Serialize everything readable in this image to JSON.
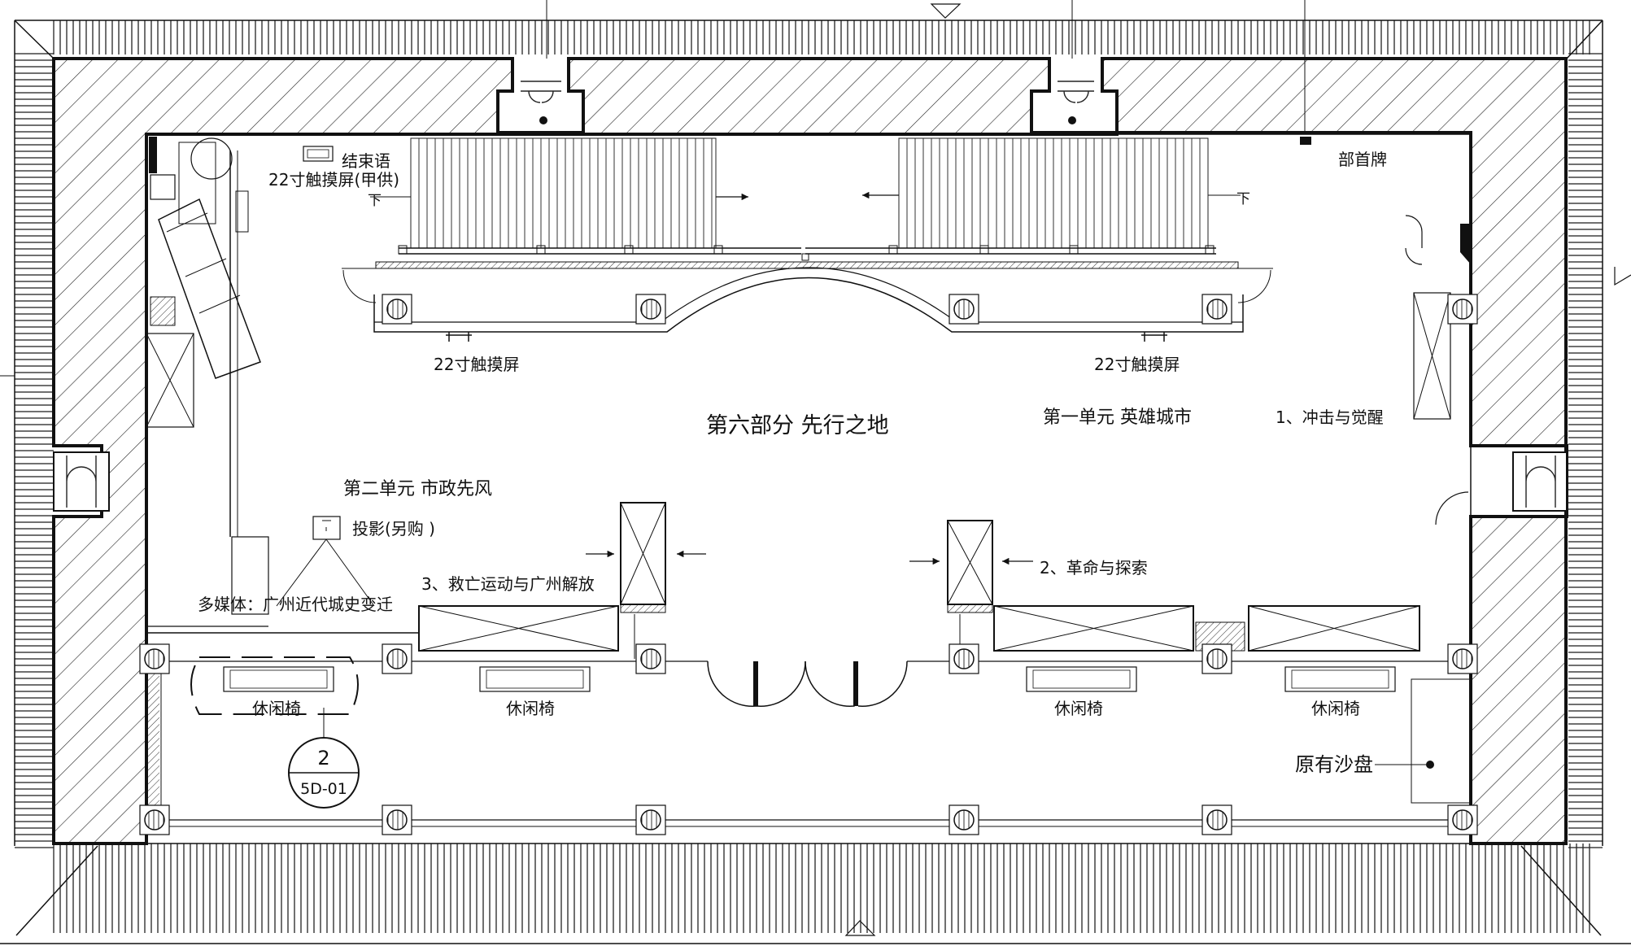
{
  "plan": {
    "labels": {
      "part_title": "第六部分 先行之地",
      "unit1": "第一单元 英雄城市",
      "unit2": "第二单元 市政先风",
      "sec1": "1、冲击与觉醒",
      "sec2": "2、革命与探索",
      "sec3": "3、救亡运动与广州解放",
      "closing_text": "结束语",
      "touch_screen_supplied": "22寸触摸屏(甲供)",
      "touch_screen_left": "22寸触摸屏",
      "touch_screen_right": "22寸触摸屏",
      "department_sign": "部首牌",
      "projection": "投影(另购 )",
      "multimedia": "多媒体：广州近代城史变迁",
      "bench_1": "休闲椅",
      "bench_2": "休闲椅",
      "bench_3": "休闲椅",
      "bench_4": "休闲椅",
      "sand_table": "原有沙盘",
      "stair_down_left": "下",
      "stair_down_right": "下",
      "detail_number": "2",
      "detail_sheet": "5D-01"
    },
    "colors": {
      "ink": "#111111",
      "hatch": "#222222",
      "background": "#ffffff"
    }
  }
}
